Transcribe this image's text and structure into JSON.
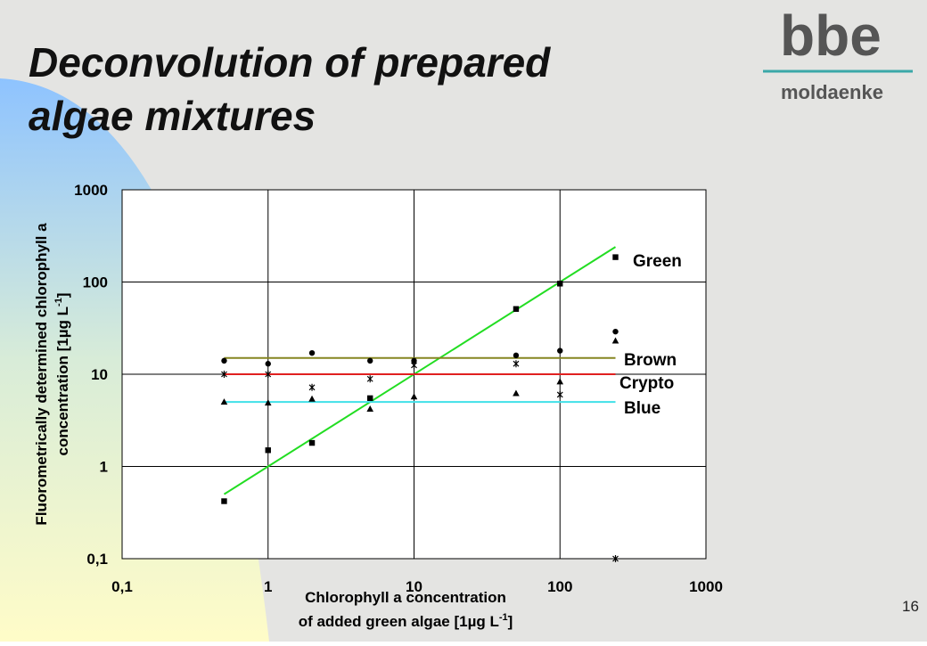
{
  "slide": {
    "title_lines": [
      "Deconvolution of prepared",
      "algae mixtures"
    ],
    "logo": "bbe",
    "logo_sub": "moldaenke",
    "page_number": "16"
  },
  "chart_data": {
    "type": "scatter",
    "x": [
      0.5,
      1,
      2,
      5,
      10,
      50,
      100,
      240
    ],
    "xlim": [
      0.1,
      1000
    ],
    "ylim": [
      0.1,
      1000
    ],
    "xlog": true,
    "ylog": true,
    "grid": true,
    "xticks": [
      {
        "value": 0.1,
        "label": "0,1"
      },
      1,
      10,
      100,
      1000
    ],
    "yticks": [
      {
        "value": 0.1,
        "label": "0,1"
      },
      1,
      10,
      100,
      1000
    ],
    "xlabel": {
      "line1": "Chlorophyll a concentration",
      "line2": "of added green algae [1µg L",
      "sup": "-1",
      "end": "]"
    },
    "ylabel": {
      "line1": "Fluorometrically determined chlorophyll a",
      "line2": "concentration [1µg L",
      "sup": "-1",
      "end": "]"
    },
    "series": [
      {
        "name": "Green",
        "color": "#22dd22",
        "marker": "square",
        "values": [
          0.42,
          1.5,
          1.8,
          5.5,
          null,
          51,
          96,
          186
        ],
        "fit": {
          "x": [
            0.5,
            240
          ],
          "values": [
            0.5,
            240
          ]
        }
      },
      {
        "name": "Brown",
        "color": "#858520",
        "marker": "circle",
        "values": [
          14,
          13,
          17,
          14,
          14,
          16,
          18,
          29
        ],
        "fit": {
          "x": [
            0.5,
            240
          ],
          "values": [
            15,
            15
          ]
        }
      },
      {
        "name": "Crypto",
        "color": "#e02020",
        "marker": "star",
        "values": [
          10,
          10,
          7.2,
          8.9,
          12.5,
          13,
          6,
          0.1
        ],
        "fit": {
          "x": [
            0.5,
            240
          ],
          "values": [
            10,
            10
          ]
        }
      },
      {
        "name": "Blue",
        "color": "#40e0e8",
        "marker": "triangle",
        "values": [
          5,
          4.9,
          5.4,
          4.2,
          5.7,
          6.2,
          8.3,
          23
        ],
        "fit": {
          "x": [
            0.5,
            240
          ],
          "values": [
            5,
            5
          ]
        }
      }
    ]
  }
}
